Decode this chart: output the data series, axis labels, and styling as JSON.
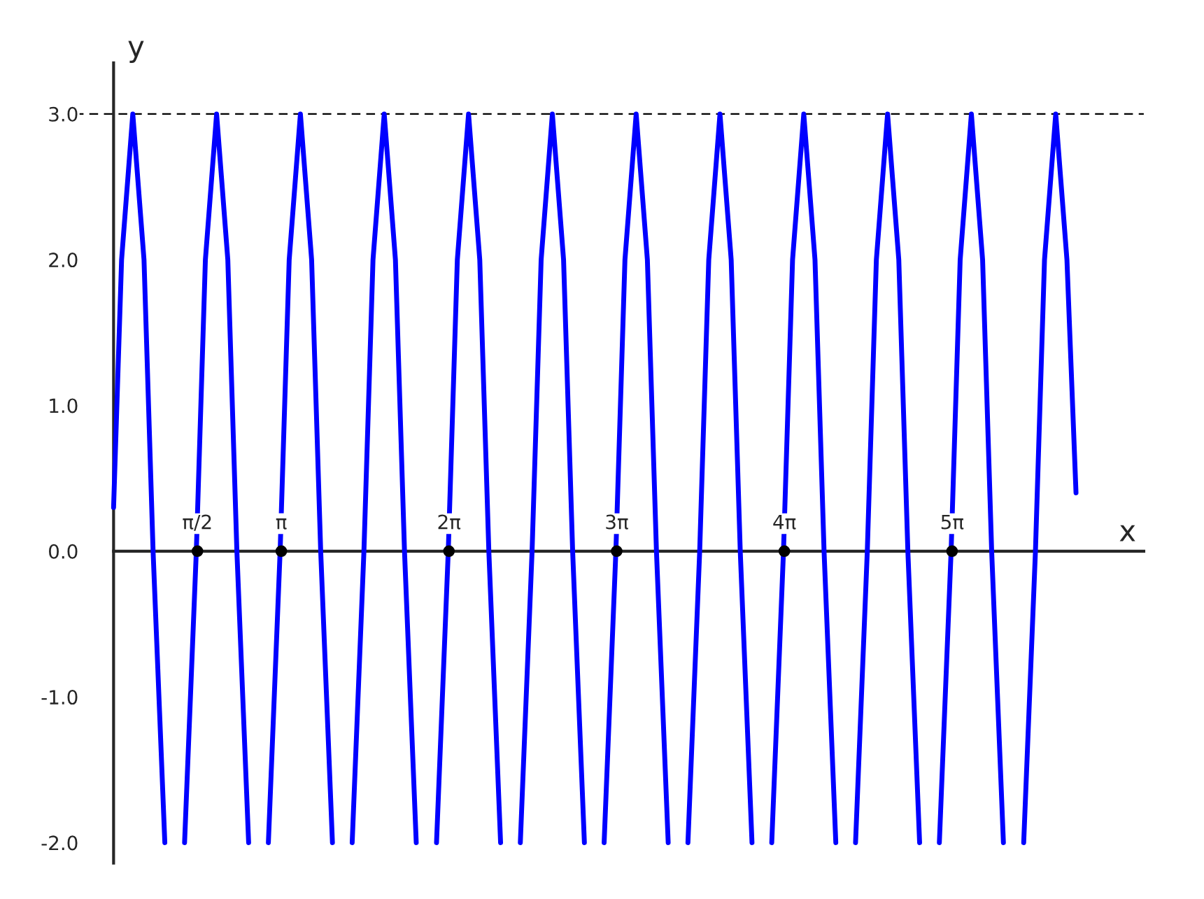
{
  "chart_data": {
    "type": "line",
    "xlabel": "x",
    "ylabel": "y",
    "xlim": [
      -1.0,
      19.3
    ],
    "ylim": [
      -2.14,
      3.35
    ],
    "xticks": [
      {
        "value": 1.571,
        "label": "π/2"
      },
      {
        "value": 3.142,
        "label": "π"
      },
      {
        "value": 6.283,
        "label": "2π"
      },
      {
        "value": 9.425,
        "label": "3π"
      },
      {
        "value": 12.566,
        "label": "4π"
      },
      {
        "value": 15.708,
        "label": "5π"
      }
    ],
    "yticks": [
      {
        "value": -2,
        "label": "-2.0"
      },
      {
        "value": -1,
        "label": "-1.0"
      },
      {
        "value": 0,
        "label": "0.0"
      },
      {
        "value": 1,
        "label": "1.0"
      },
      {
        "value": 2,
        "label": "2.0"
      },
      {
        "value": 3,
        "label": "3.0"
      }
    ],
    "grid": false,
    "legend": false,
    "line_style": "solid",
    "ref_lines": [
      {
        "axis": "y",
        "value": 3,
        "color": "#000000",
        "line_style": "dashed"
      }
    ],
    "series": [
      {
        "color": "#0000ff",
        "x": [
          0,
          0.15,
          0.36,
          0.57,
          0.74,
          0.96,
          1.1,
          1.33,
          1.55,
          1.72,
          1.93,
          2.14,
          2.31,
          2.53,
          2.7,
          2.9,
          3.12,
          3.29,
          3.5,
          3.71,
          3.88,
          4.1,
          4.29,
          4.47,
          4.69,
          4.86,
          5.07,
          5.28,
          5.45,
          5.67,
          5.86,
          6.05,
          6.27,
          6.44,
          6.65,
          6.86,
          7.03,
          7.25,
          7.43,
          7.62,
          7.84,
          8.01,
          8.22,
          8.43,
          8.6,
          8.82,
          9.0,
          9.19,
          9.41,
          9.58,
          9.79,
          10.0,
          10.17,
          10.39,
          10.57,
          10.76,
          10.98,
          11.15,
          11.36,
          11.57,
          11.74,
          11.96,
          12.15,
          12.33,
          12.55,
          12.72,
          12.93,
          13.14,
          13.31,
          13.53,
          13.72,
          13.9,
          14.12,
          14.29,
          14.5,
          14.71,
          14.88,
          15.1,
          15.29,
          15.47,
          15.69,
          15.86,
          16.07,
          16.28,
          16.45,
          16.67,
          16.86,
          17.05,
          17.27,
          17.44,
          17.65,
          17.86,
          18.03
        ],
        "values": [
          0.3,
          2.0,
          3.0,
          2.0,
          0.0,
          -2.0,
          null,
          -2.0,
          0.0,
          2.0,
          3.0,
          2.0,
          0.0,
          -2.0,
          null,
          -2.0,
          0.0,
          2.0,
          3.0,
          2.0,
          0.0,
          -2.0,
          null,
          -2.0,
          0.0,
          2.0,
          3.0,
          2.0,
          0.0,
          -2.0,
          null,
          -2.0,
          0.0,
          2.0,
          3.0,
          2.0,
          0.0,
          -2.0,
          null,
          -2.0,
          0.0,
          2.0,
          3.0,
          2.0,
          0.0,
          -2.0,
          null,
          -2.0,
          0.0,
          2.0,
          3.0,
          2.0,
          0.0,
          -2.0,
          null,
          -2.0,
          0.0,
          2.0,
          3.0,
          2.0,
          0.0,
          -2.0,
          null,
          -2.0,
          0.0,
          2.0,
          3.0,
          2.0,
          0.0,
          -2.0,
          null,
          -2.0,
          0.0,
          2.0,
          3.0,
          2.0,
          0.0,
          -2.0,
          null,
          -2.0,
          0.0,
          2.0,
          3.0,
          2.0,
          0.0,
          -2.0,
          null,
          -2.0,
          0.0,
          2.0,
          3.0,
          2.0,
          0.4
        ]
      },
      {
        "type": "scatter",
        "color": "#000000",
        "marker": "circle",
        "x": [
          1.571,
          3.142,
          6.283,
          9.425,
          12.566,
          15.708
        ],
        "values": [
          0,
          0,
          0,
          0,
          0,
          0
        ]
      }
    ]
  }
}
